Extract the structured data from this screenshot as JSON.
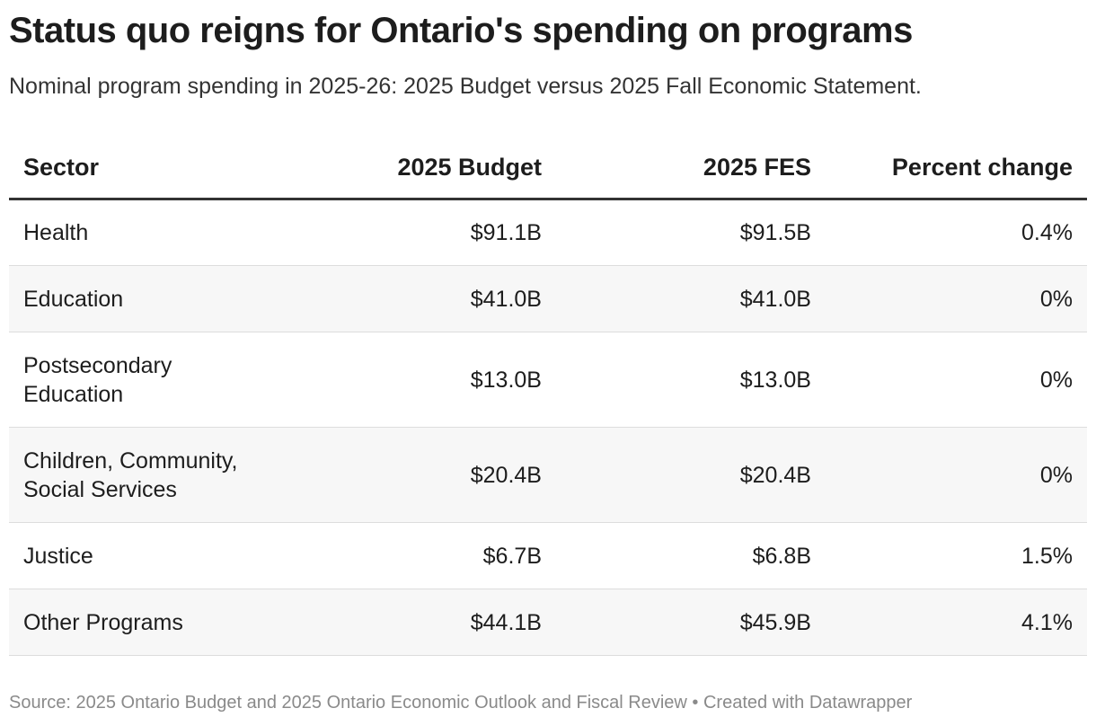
{
  "header": {
    "title": "Status quo reigns for Ontario's spending on programs",
    "subtitle": "Nominal program spending in 2025-26: 2025 Budget versus 2025 Fall Economic Statement."
  },
  "table": {
    "columns": [
      "Sector",
      "2025 Budget",
      "2025 FES",
      "Percent change"
    ],
    "rows": [
      [
        "Health",
        "$91.1B",
        "$91.5B",
        "0.4%"
      ],
      [
        "Education",
        "$41.0B",
        "$41.0B",
        "0%"
      ],
      [
        "Postsecondary Education",
        "$13.0B",
        "$13.0B",
        "0%"
      ],
      [
        "Children, Community, Social Services",
        "$20.4B",
        "$20.4B",
        "0%"
      ],
      [
        "Justice",
        "$6.7B",
        "$6.8B",
        "1.5%"
      ],
      [
        "Other Programs",
        "$44.1B",
        "$45.9B",
        "4.1%"
      ]
    ]
  },
  "footer": {
    "source": "Source: 2025 Ontario Budget and 2025 Ontario Economic Outlook and Fiscal Review • Created with Datawrapper"
  }
}
